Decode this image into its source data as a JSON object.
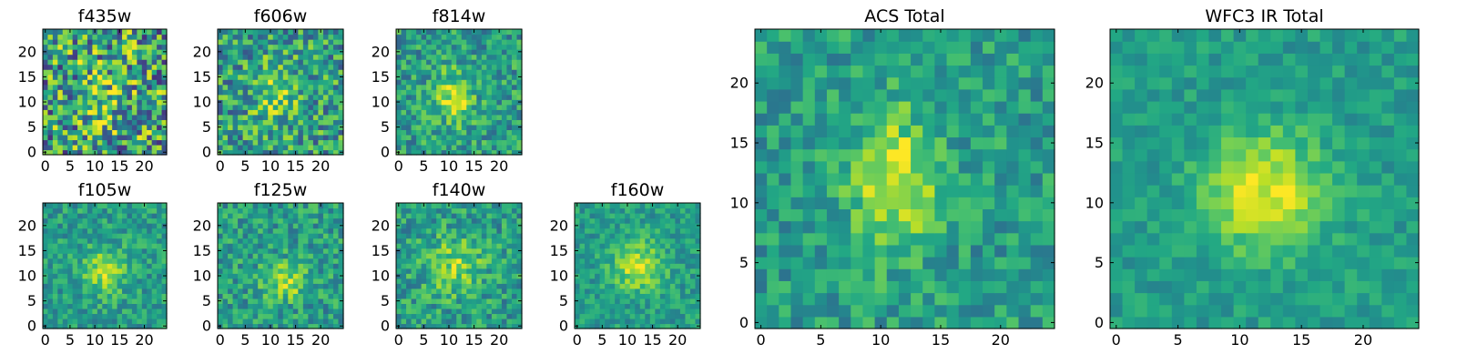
{
  "chart_data": [
    {
      "type": "heatmap",
      "title": "f435w",
      "xlim": [
        0,
        24
      ],
      "ylim": [
        0,
        24
      ],
      "grid_size": 25,
      "colormap": "viridis",
      "noise": 0.85,
      "source": {
        "sigma_x": 4.0,
        "sigma_y": 5.0,
        "center": [
          12,
          11
        ],
        "amp": 0.35
      },
      "xticks": [
        "0",
        "5",
        "10",
        "15",
        "20"
      ],
      "yticks": [
        "0",
        "5",
        "10",
        "15",
        "20"
      ]
    },
    {
      "type": "heatmap",
      "title": "f606w",
      "xlim": [
        0,
        24
      ],
      "ylim": [
        0,
        24
      ],
      "grid_size": 25,
      "colormap": "viridis",
      "noise": 0.6,
      "source": {
        "sigma_x": 3.0,
        "sigma_y": 4.0,
        "center": [
          11,
          12
        ],
        "amp": 0.6
      },
      "xticks": [
        "0",
        "5",
        "10",
        "15",
        "20"
      ],
      "yticks": [
        "0",
        "5",
        "10",
        "15",
        "20"
      ]
    },
    {
      "type": "heatmap",
      "title": "f814w",
      "xlim": [
        0,
        24
      ],
      "ylim": [
        0,
        24
      ],
      "grid_size": 25,
      "colormap": "viridis",
      "noise": 0.45,
      "source": {
        "sigma_x": 2.5,
        "sigma_y": 3.5,
        "center": [
          11,
          11
        ],
        "amp": 0.75
      },
      "xticks": [
        "0",
        "5",
        "10",
        "15",
        "20"
      ],
      "yticks": [
        "0",
        "5",
        "10",
        "15",
        "20"
      ]
    },
    {
      "type": "heatmap",
      "title": "f105w",
      "xlim": [
        0,
        24
      ],
      "ylim": [
        0,
        24
      ],
      "grid_size": 25,
      "colormap": "viridis",
      "noise": 0.35,
      "source": {
        "sigma_x": 3.0,
        "sigma_y": 3.0,
        "center": [
          12,
          11
        ],
        "amp": 0.7
      },
      "xticks": [
        "0",
        "5",
        "10",
        "15",
        "20"
      ],
      "yticks": [
        "0",
        "5",
        "10",
        "15",
        "20"
      ]
    },
    {
      "type": "heatmap",
      "title": "f125w",
      "xlim": [
        0,
        24
      ],
      "ylim": [
        0,
        24
      ],
      "grid_size": 25,
      "colormap": "viridis",
      "noise": 0.4,
      "source": {
        "sigma_x": 3.0,
        "sigma_y": 2.5,
        "center": [
          13,
          9
        ],
        "amp": 0.65
      },
      "xticks": [
        "0",
        "5",
        "10",
        "15",
        "20"
      ],
      "yticks": [
        "0",
        "5",
        "10",
        "15",
        "20"
      ]
    },
    {
      "type": "heatmap",
      "title": "f140w",
      "xlim": [
        0,
        24
      ],
      "ylim": [
        0,
        24
      ],
      "grid_size": 25,
      "colormap": "viridis",
      "noise": 0.4,
      "source": {
        "sigma_x": 4.0,
        "sigma_y": 4.0,
        "center": [
          11,
          12
        ],
        "amp": 0.55
      },
      "xticks": [
        "0",
        "5",
        "10",
        "15",
        "20"
      ],
      "yticks": [
        "0",
        "5",
        "10",
        "15",
        "20"
      ]
    },
    {
      "type": "heatmap",
      "title": "f160w",
      "xlim": [
        0,
        24
      ],
      "ylim": [
        0,
        24
      ],
      "grid_size": 25,
      "colormap": "viridis",
      "noise": 0.3,
      "source": {
        "sigma_x": 3.5,
        "sigma_y": 3.5,
        "center": [
          12,
          12
        ],
        "amp": 0.7
      },
      "xticks": [
        "0",
        "5",
        "10",
        "15",
        "20"
      ],
      "yticks": [
        "0",
        "5",
        "10",
        "15",
        "20"
      ]
    },
    {
      "type": "heatmap",
      "title": "ACS Total",
      "xlim": [
        0,
        24
      ],
      "ylim": [
        0,
        24
      ],
      "grid_size": 25,
      "colormap": "viridis",
      "noise": 0.35,
      "source": {
        "sigma_x": 2.5,
        "sigma_y": 4.0,
        "center": [
          11,
          12
        ],
        "amp": 0.8
      },
      "xticks": [
        "0",
        "5",
        "10",
        "15",
        "20"
      ],
      "yticks": [
        "0",
        "5",
        "10",
        "15",
        "20"
      ]
    },
    {
      "type": "heatmap",
      "title": "WFC3 IR Total",
      "xlim": [
        0,
        24
      ],
      "ylim": [
        0,
        24
      ],
      "grid_size": 25,
      "colormap": "viridis",
      "noise": 0.22,
      "source": {
        "sigma_x": 3.5,
        "sigma_y": 3.5,
        "center": [
          12,
          11
        ],
        "amp": 0.8
      },
      "xticks": [
        "0",
        "5",
        "10",
        "15",
        "20"
      ],
      "yticks": [
        "0",
        "5",
        "10",
        "15",
        "20"
      ]
    }
  ]
}
